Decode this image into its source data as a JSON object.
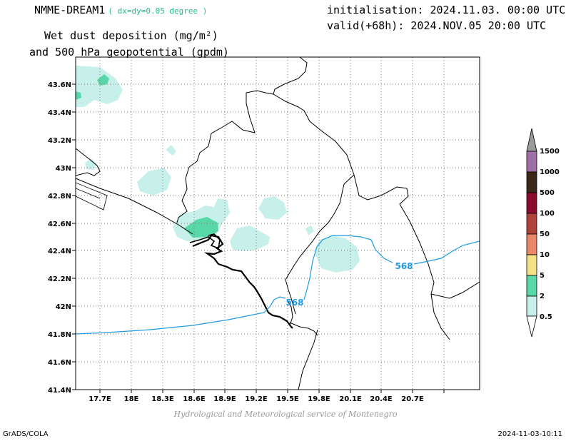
{
  "header": {
    "model": "NMME-DREAM1",
    "resolution": "( dx=dy=0.05 degree )",
    "init": "initialisation: 2024.11.03. 00:00 UTC",
    "valid": "valid(+68h): 2024.NOV.05 20:00 UTC",
    "field_line1": "Wet dust deposition (mg/m²)",
    "field_line2": "and 500 hPa geopotential (gpdm)"
  },
  "axes": {
    "lat_labels": [
      "43.6N",
      "43.4N",
      "43.2N",
      "43N",
      "42.8N",
      "42.6N",
      "42.4N",
      "42.2N",
      "42N",
      "41.8N",
      "41.6N",
      "41.4N"
    ],
    "lon_labels": [
      "17.7E",
      "18E",
      "18.3E",
      "18.6E",
      "18.9E",
      "19.2E",
      "19.5E",
      "19.8E",
      "20.1E",
      "20.4E",
      "20.7E"
    ]
  },
  "contours": {
    "geopotential_label_1": "568",
    "geopotential_label_2": "568",
    "line_color": "#1e9be6"
  },
  "colorbar": {
    "levels": [
      "1500",
      "1000",
      "500",
      "100",
      "50",
      "10",
      "5",
      "2",
      "0.5"
    ],
    "colors": [
      "#9a9a9a",
      "#9e70a8",
      "#3c2818",
      "#8c0a2c",
      "#b0423c",
      "#e98868",
      "#f3e188",
      "#58d8a8",
      "#c8f0ea"
    ]
  },
  "footer": {
    "credit": "Hydrological and Meteorological service of Montenegro",
    "software": "GrADS/COLA",
    "timestamp": "2024-11-03-10:11"
  }
}
